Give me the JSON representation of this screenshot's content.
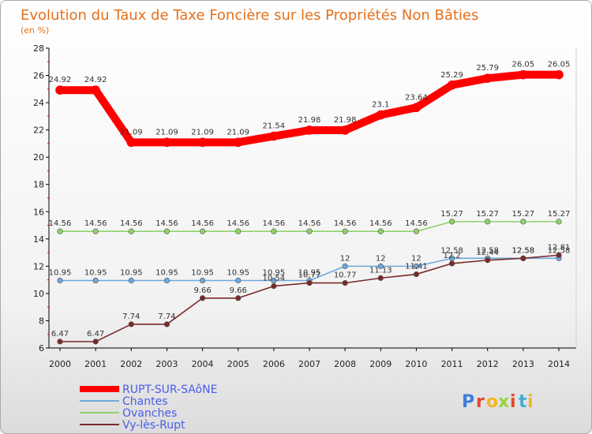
{
  "chart_data": {
    "type": "line",
    "title": "Evolution du Taux de Taxe Foncière sur les Propriétés Non Bâties",
    "subtitle": "(en %)",
    "xlabel": "",
    "ylabel": "",
    "x": [
      "2000",
      "2001",
      "2002",
      "2003",
      "2004",
      "2005",
      "2006",
      "2007",
      "2008",
      "2009",
      "2010",
      "2011",
      "2012",
      "2013",
      "2014"
    ],
    "ylim": [
      6,
      28
    ],
    "yticks": [
      6,
      8,
      10,
      12,
      14,
      16,
      18,
      20,
      22,
      24,
      26,
      28
    ],
    "series": [
      {
        "name": "RUPT-SUR-SAôNE",
        "color": "#ff0000",
        "values": [
          24.92,
          24.92,
          21.09,
          21.09,
          21.09,
          21.09,
          21.54,
          21.98,
          21.98,
          23.1,
          23.64,
          25.29,
          25.79,
          26.05,
          26.05
        ],
        "labels": [
          "24.92",
          "24.92",
          "21.09",
          "21.09",
          "21.09",
          "21.09",
          "21.54",
          "21.98",
          "21.98",
          "23.1",
          "23.64",
          "25.29",
          "25.79",
          "26.05",
          "26.05"
        ]
      },
      {
        "name": "Chantes",
        "color": "#6fa8dc",
        "values": [
          10.95,
          10.95,
          10.95,
          10.95,
          10.95,
          10.95,
          10.95,
          10.95,
          12,
          12,
          12,
          12.58,
          12.58,
          12.58,
          12.58
        ],
        "labels": [
          "10.95",
          "10.95",
          "10.95",
          "10.95",
          "10.95",
          "10.95",
          "10.95",
          "10.95",
          "12",
          "12",
          "12",
          "12.58",
          "12.58",
          "12.58",
          "12.58"
        ]
      },
      {
        "name": "Ovanches",
        "color": "#8fd26a",
        "values": [
          14.56,
          14.56,
          14.56,
          14.56,
          14.56,
          14.56,
          14.56,
          14.56,
          14.56,
          14.56,
          14.56,
          15.27,
          15.27,
          15.27,
          15.27
        ],
        "labels": [
          "14.56",
          "14.56",
          "14.56",
          "14.56",
          "14.56",
          "14.56",
          "14.56",
          "14.56",
          "14.56",
          "14.56",
          "14.56",
          "15.27",
          "15.27",
          "15.27",
          "15.27"
        ]
      },
      {
        "name": "Vy-lès-Rupt",
        "color": "#7a2a2a",
        "values": [
          6.47,
          6.47,
          7.74,
          7.74,
          9.66,
          9.66,
          10.54,
          10.77,
          10.77,
          11.13,
          11.41,
          12.2,
          12.44,
          12.58,
          12.81
        ],
        "labels": [
          "6.47",
          "6.47",
          "7.74",
          "7.74",
          "9.66",
          "9.66",
          "10.54",
          "10.77",
          "10.77",
          "11.13",
          "11.41",
          "12.2",
          "12.44",
          "12.58",
          "12.81"
        ]
      }
    ],
    "grid": false,
    "legend_position": "bottom-left"
  },
  "watermark": "Proxiti"
}
